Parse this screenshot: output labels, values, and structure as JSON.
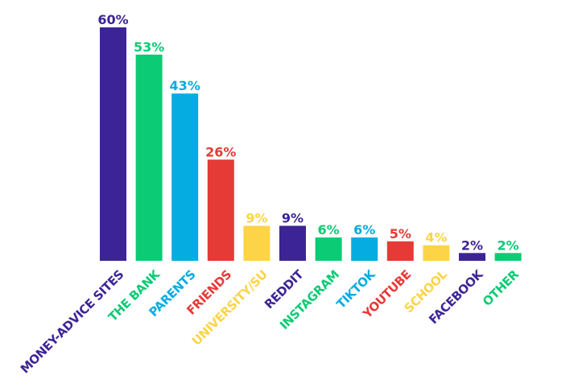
{
  "chart_data": {
    "type": "bar",
    "categories": [
      "MONEY-ADVICE SITES",
      "THE BANK",
      "PARENTS",
      "FRIENDS",
      "UNIVERSITY/SU",
      "REDDIT",
      "INSTAGRAM",
      "TIKTOK",
      "YOUTUBE",
      "SCHOOL",
      "FACEBOOK",
      "OTHER"
    ],
    "values": [
      60,
      53,
      43,
      26,
      9,
      9,
      6,
      6,
      5,
      4,
      2,
      2
    ],
    "value_labels": [
      "60%",
      "53%",
      "43%",
      "26%",
      "9%",
      "9%",
      "6%",
      "6%",
      "5%",
      "4%",
      "2%",
      "2%"
    ],
    "colors": [
      "#3d2496",
      "#0bcb74",
      "#05ace1",
      "#e53a36",
      "#fdd447",
      "#3d2496",
      "#0bcb74",
      "#05ace1",
      "#e53a36",
      "#fdd447",
      "#3d2496",
      "#0bcb74"
    ],
    "title": "",
    "xlabel": "",
    "ylabel": "",
    "ylim": [
      0,
      60
    ],
    "grid": false,
    "legend": "none"
  }
}
